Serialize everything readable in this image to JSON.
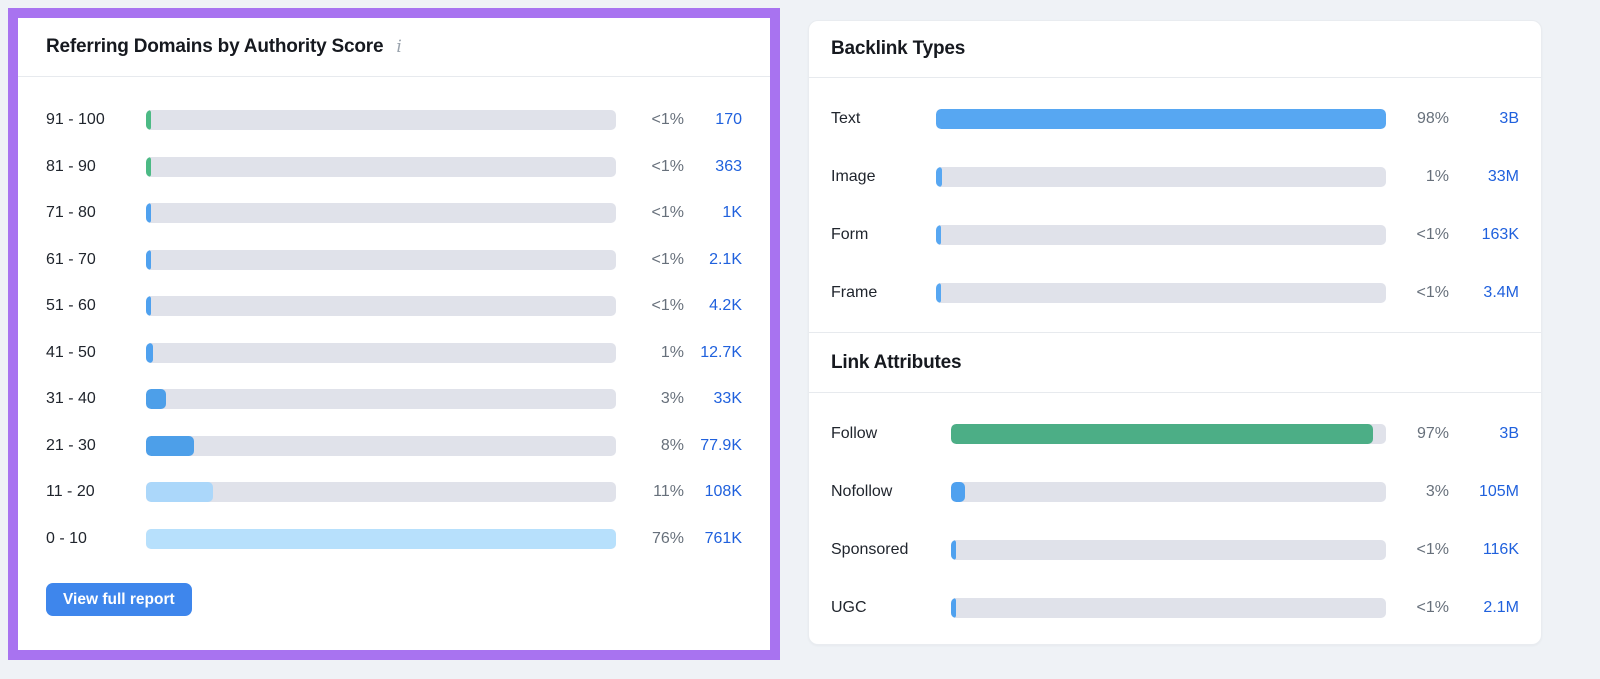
{
  "page": {
    "background_color": "#eff2f6",
    "highlight_border_color": "#a873f0"
  },
  "colors": {
    "track_gray": "#e0e2ea",
    "medium_blue": "#4d9fe9",
    "bright_blue": "#57a7f2",
    "light_blue": "#abd7fa",
    "lighter_blue": "#b7e0fc",
    "green": "#4cae86",
    "link_blue": "#2061dd",
    "percent_gray": "#67707b",
    "button_blue": "#3e86ec"
  },
  "left_panel": {
    "title": "Referring Domains by Authority Score",
    "info_icon_glyph": "i",
    "button_label": "View full report",
    "rows": [
      {
        "label": "91 - 100",
        "pct": "<1%",
        "value": "170",
        "fill": "5px",
        "color": "#4cba85"
      },
      {
        "label": "81 - 90",
        "pct": "<1%",
        "value": "363",
        "fill": "5px",
        "color": "#4cba85"
      },
      {
        "label": "71 - 80",
        "pct": "<1%",
        "value": "1K",
        "fill": "5px",
        "color": "#4fa1ef"
      },
      {
        "label": "61 - 70",
        "pct": "<1%",
        "value": "2.1K",
        "fill": "5px",
        "color": "#4fa1ef"
      },
      {
        "label": "51 - 60",
        "pct": "<1%",
        "value": "4.2K",
        "fill": "5px",
        "color": "#4fa1ef"
      },
      {
        "label": "41 - 50",
        "pct": "1%",
        "value": "12.7K",
        "fill": "7px",
        "color": "#4fa1ef"
      },
      {
        "label": "31 - 40",
        "pct": "3%",
        "value": "33K",
        "fill": "4.3%",
        "color": "#4d9fe9"
      },
      {
        "label": "21 - 30",
        "pct": "8%",
        "value": "77.9K",
        "fill": "10.2%",
        "color": "#4d9fe9"
      },
      {
        "label": "11 - 20",
        "pct": "11%",
        "value": "108K",
        "fill": "14.2%",
        "color": "#abd7fa"
      },
      {
        "label": "0 - 10",
        "pct": "76%",
        "value": "761K",
        "fill": "100%",
        "color": "#b7e0fc"
      }
    ]
  },
  "right_panel": {
    "sections": [
      {
        "title": "Backlink Types",
        "rows": [
          {
            "label": "Text",
            "pct": "98%",
            "value": "3B",
            "fill": "100%",
            "color": "#57a7f2"
          },
          {
            "label": "Image",
            "pct": "1%",
            "value": "33M",
            "fill": "6px",
            "color": "#57a7f2"
          },
          {
            "label": "Form",
            "pct": "<1%",
            "value": "163K",
            "fill": "5px",
            "color": "#57a7f2"
          },
          {
            "label": "Frame",
            "pct": "<1%",
            "value": "3.4M",
            "fill": "5px",
            "color": "#57a7f2"
          }
        ]
      },
      {
        "title": "Link Attributes",
        "rows": [
          {
            "label": "Follow",
            "pct": "97%",
            "value": "3B",
            "fill": "97%",
            "color": "#4cae86"
          },
          {
            "label": "Nofollow",
            "pct": "3%",
            "value": "105M",
            "fill": "14px",
            "color": "#4fa1ef"
          },
          {
            "label": "Sponsored",
            "pct": "<1%",
            "value": "116K",
            "fill": "5px",
            "color": "#4fa1ef"
          },
          {
            "label": "UGC",
            "pct": "<1%",
            "value": "2.1M",
            "fill": "5px",
            "color": "#4fa1ef"
          }
        ]
      }
    ]
  }
}
